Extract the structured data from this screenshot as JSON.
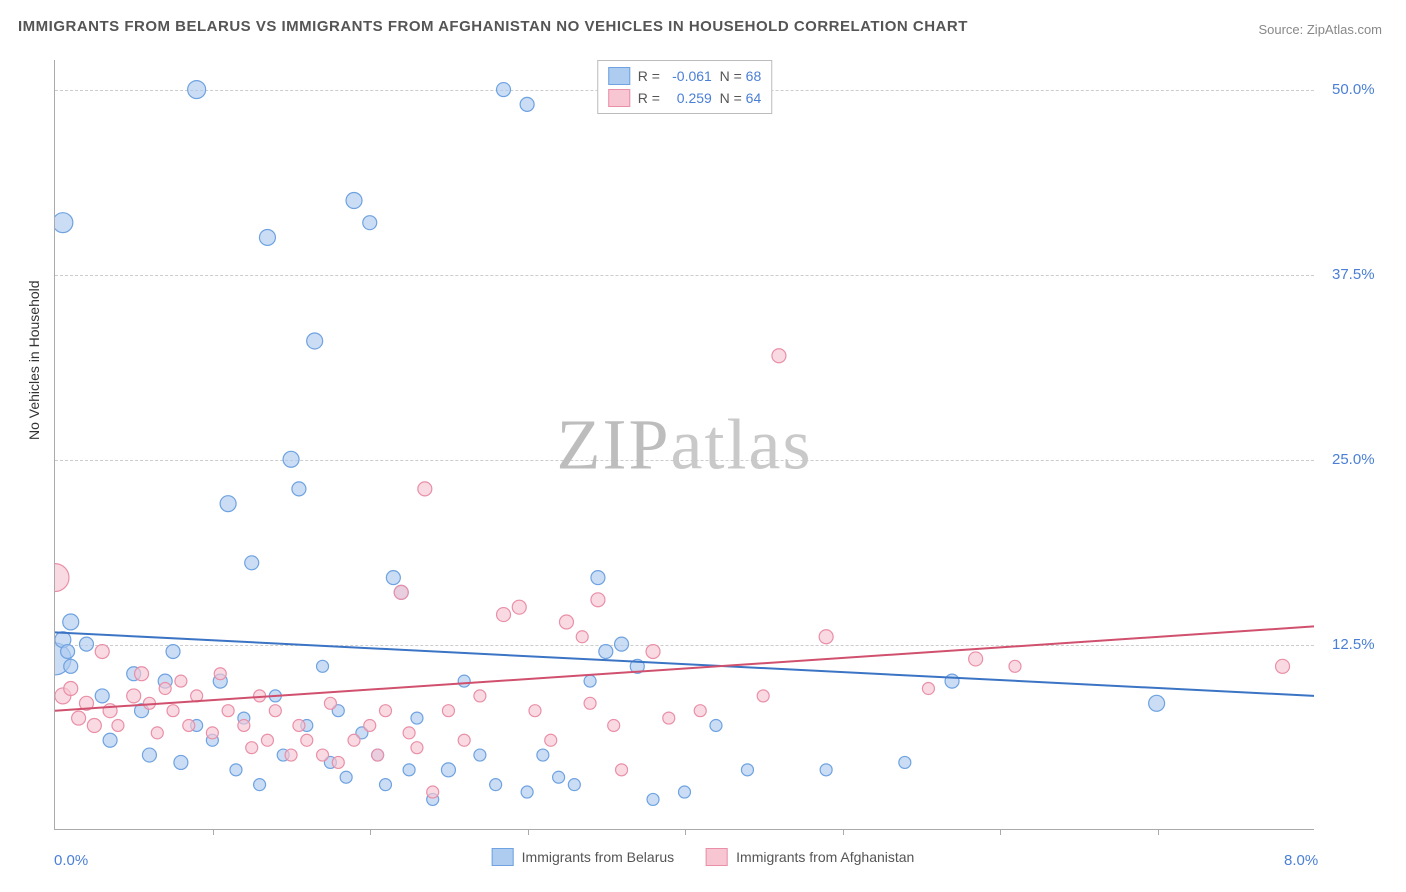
{
  "title": "IMMIGRANTS FROM BELARUS VS IMMIGRANTS FROM AFGHANISTAN NO VEHICLES IN HOUSEHOLD CORRELATION CHART",
  "title_fontsize": 15,
  "title_color": "#555555",
  "source_label": "Source: ZipAtlas.com",
  "watermark": "ZIPatlas",
  "yaxis_title": "No Vehicles in Household",
  "background_color": "#ffffff",
  "grid_color": "#cccccc",
  "axis_color": "#aaaaaa",
  "xlim": [
    0,
    8
  ],
  "ylim": [
    0,
    52
  ],
  "y_ticks": [
    12.5,
    25.0,
    37.5,
    50.0
  ],
  "x_min_label": "0.0%",
  "x_max_label": "8.0%",
  "x_tick_positions": [
    1.0,
    2.0,
    3.0,
    4.0,
    5.0,
    6.0,
    7.0
  ],
  "legend_top": [
    {
      "swatch_fill": "#aecbf0",
      "swatch_stroke": "#6ea2e0",
      "R": "-0.061",
      "N": "68"
    },
    {
      "swatch_fill": "#f7c6d2",
      "swatch_stroke": "#e98fa8",
      "R": "0.259",
      "N": "64"
    }
  ],
  "legend_bottom": [
    {
      "swatch_fill": "#aecbf0",
      "swatch_stroke": "#6ea2e0",
      "label": "Immigrants from Belarus"
    },
    {
      "swatch_fill": "#f7c6d2",
      "swatch_stroke": "#e98fa8",
      "label": "Immigrants from Afghanistan"
    }
  ],
  "series": [
    {
      "name": "belarus",
      "point_fill": "#aecbf0",
      "point_stroke": "#6ea2e0",
      "point_opacity": 0.65,
      "line_color": "#3b74c4",
      "line_width": 2,
      "line_y_at_xmin": 13.3,
      "line_y_at_xmax": 9.0,
      "points": [
        {
          "x": 0.05,
          "y": 41.0,
          "r": 10
        },
        {
          "x": 0.1,
          "y": 14.0,
          "r": 8
        },
        {
          "x": 0.0,
          "y": 11.5,
          "r": 16
        },
        {
          "x": 0.05,
          "y": 12.8,
          "r": 8
        },
        {
          "x": 0.08,
          "y": 12.0,
          "r": 7
        },
        {
          "x": 0.1,
          "y": 11.0,
          "r": 7
        },
        {
          "x": 0.2,
          "y": 12.5,
          "r": 7
        },
        {
          "x": 0.3,
          "y": 9.0,
          "r": 7
        },
        {
          "x": 0.35,
          "y": 6.0,
          "r": 7
        },
        {
          "x": 0.5,
          "y": 10.5,
          "r": 7
        },
        {
          "x": 0.55,
          "y": 8.0,
          "r": 7
        },
        {
          "x": 0.6,
          "y": 5.0,
          "r": 7
        },
        {
          "x": 0.7,
          "y": 10.0,
          "r": 7
        },
        {
          "x": 0.75,
          "y": 12.0,
          "r": 7
        },
        {
          "x": 0.8,
          "y": 4.5,
          "r": 7
        },
        {
          "x": 0.9,
          "y": 50.0,
          "r": 9
        },
        {
          "x": 0.9,
          "y": 7.0,
          "r": 6
        },
        {
          "x": 1.0,
          "y": 6.0,
          "r": 6
        },
        {
          "x": 1.05,
          "y": 10.0,
          "r": 7
        },
        {
          "x": 1.1,
          "y": 22.0,
          "r": 8
        },
        {
          "x": 1.15,
          "y": 4.0,
          "r": 6
        },
        {
          "x": 1.2,
          "y": 7.5,
          "r": 6
        },
        {
          "x": 1.25,
          "y": 18.0,
          "r": 7
        },
        {
          "x": 1.3,
          "y": 3.0,
          "r": 6
        },
        {
          "x": 1.35,
          "y": 40.0,
          "r": 8
        },
        {
          "x": 1.4,
          "y": 9.0,
          "r": 6
        },
        {
          "x": 1.45,
          "y": 5.0,
          "r": 6
        },
        {
          "x": 1.5,
          "y": 25.0,
          "r": 8
        },
        {
          "x": 1.55,
          "y": 23.0,
          "r": 7
        },
        {
          "x": 1.6,
          "y": 7.0,
          "r": 6
        },
        {
          "x": 1.65,
          "y": 33.0,
          "r": 8
        },
        {
          "x": 1.7,
          "y": 11.0,
          "r": 6
        },
        {
          "x": 1.75,
          "y": 4.5,
          "r": 6
        },
        {
          "x": 1.8,
          "y": 8.0,
          "r": 6
        },
        {
          "x": 1.85,
          "y": 3.5,
          "r": 6
        },
        {
          "x": 1.9,
          "y": 42.5,
          "r": 8
        },
        {
          "x": 1.95,
          "y": 6.5,
          "r": 6
        },
        {
          "x": 2.0,
          "y": 41.0,
          "r": 7
        },
        {
          "x": 2.05,
          "y": 5.0,
          "r": 6
        },
        {
          "x": 2.1,
          "y": 3.0,
          "r": 6
        },
        {
          "x": 2.15,
          "y": 17.0,
          "r": 7
        },
        {
          "x": 2.2,
          "y": 16.0,
          "r": 7
        },
        {
          "x": 2.25,
          "y": 4.0,
          "r": 6
        },
        {
          "x": 2.3,
          "y": 7.5,
          "r": 6
        },
        {
          "x": 2.4,
          "y": 2.0,
          "r": 6
        },
        {
          "x": 2.5,
          "y": 4.0,
          "r": 7
        },
        {
          "x": 2.6,
          "y": 10.0,
          "r": 6
        },
        {
          "x": 2.7,
          "y": 5.0,
          "r": 6
        },
        {
          "x": 2.8,
          "y": 3.0,
          "r": 6
        },
        {
          "x": 2.85,
          "y": 50.0,
          "r": 7
        },
        {
          "x": 3.0,
          "y": 2.5,
          "r": 6
        },
        {
          "x": 3.1,
          "y": 5.0,
          "r": 6
        },
        {
          "x": 3.2,
          "y": 3.5,
          "r": 6
        },
        {
          "x": 3.3,
          "y": 3.0,
          "r": 6
        },
        {
          "x": 3.4,
          "y": 10.0,
          "r": 6
        },
        {
          "x": 3.45,
          "y": 17.0,
          "r": 7
        },
        {
          "x": 3.5,
          "y": 12.0,
          "r": 7
        },
        {
          "x": 3.6,
          "y": 12.5,
          "r": 7
        },
        {
          "x": 3.7,
          "y": 11.0,
          "r": 7
        },
        {
          "x": 3.8,
          "y": 2.0,
          "r": 6
        },
        {
          "x": 4.0,
          "y": 2.5,
          "r": 6
        },
        {
          "x": 4.2,
          "y": 7.0,
          "r": 6
        },
        {
          "x": 4.4,
          "y": 4.0,
          "r": 6
        },
        {
          "x": 4.9,
          "y": 4.0,
          "r": 6
        },
        {
          "x": 5.4,
          "y": 4.5,
          "r": 6
        },
        {
          "x": 5.7,
          "y": 10.0,
          "r": 7
        },
        {
          "x": 7.0,
          "y": 8.5,
          "r": 8
        },
        {
          "x": 3.0,
          "y": 49.0,
          "r": 7
        }
      ]
    },
    {
      "name": "afghanistan",
      "point_fill": "#f7c6d2",
      "point_stroke": "#e98fa8",
      "point_opacity": 0.65,
      "line_color": "#d0506e",
      "line_width": 2,
      "line_y_at_xmin": 8.0,
      "line_y_at_xmax": 13.7,
      "points": [
        {
          "x": 0.0,
          "y": 17.0,
          "r": 14
        },
        {
          "x": 0.05,
          "y": 9.0,
          "r": 8
        },
        {
          "x": 0.1,
          "y": 9.5,
          "r": 7
        },
        {
          "x": 0.15,
          "y": 7.5,
          "r": 7
        },
        {
          "x": 0.2,
          "y": 8.5,
          "r": 7
        },
        {
          "x": 0.25,
          "y": 7.0,
          "r": 7
        },
        {
          "x": 0.3,
          "y": 12.0,
          "r": 7
        },
        {
          "x": 0.35,
          "y": 8.0,
          "r": 7
        },
        {
          "x": 0.4,
          "y": 7.0,
          "r": 6
        },
        {
          "x": 0.5,
          "y": 9.0,
          "r": 7
        },
        {
          "x": 0.55,
          "y": 10.5,
          "r": 7
        },
        {
          "x": 0.6,
          "y": 8.5,
          "r": 6
        },
        {
          "x": 0.65,
          "y": 6.5,
          "r": 6
        },
        {
          "x": 0.7,
          "y": 9.5,
          "r": 6
        },
        {
          "x": 0.75,
          "y": 8.0,
          "r": 6
        },
        {
          "x": 0.8,
          "y": 10.0,
          "r": 6
        },
        {
          "x": 0.85,
          "y": 7.0,
          "r": 6
        },
        {
          "x": 0.9,
          "y": 9.0,
          "r": 6
        },
        {
          "x": 1.0,
          "y": 6.5,
          "r": 6
        },
        {
          "x": 1.05,
          "y": 10.5,
          "r": 6
        },
        {
          "x": 1.1,
          "y": 8.0,
          "r": 6
        },
        {
          "x": 1.2,
          "y": 7.0,
          "r": 6
        },
        {
          "x": 1.25,
          "y": 5.5,
          "r": 6
        },
        {
          "x": 1.3,
          "y": 9.0,
          "r": 6
        },
        {
          "x": 1.35,
          "y": 6.0,
          "r": 6
        },
        {
          "x": 1.4,
          "y": 8.0,
          "r": 6
        },
        {
          "x": 1.5,
          "y": 5.0,
          "r": 6
        },
        {
          "x": 1.55,
          "y": 7.0,
          "r": 6
        },
        {
          "x": 1.6,
          "y": 6.0,
          "r": 6
        },
        {
          "x": 1.7,
          "y": 5.0,
          "r": 6
        },
        {
          "x": 1.75,
          "y": 8.5,
          "r": 6
        },
        {
          "x": 1.8,
          "y": 4.5,
          "r": 6
        },
        {
          "x": 1.9,
          "y": 6.0,
          "r": 6
        },
        {
          "x": 2.0,
          "y": 7.0,
          "r": 6
        },
        {
          "x": 2.05,
          "y": 5.0,
          "r": 6
        },
        {
          "x": 2.1,
          "y": 8.0,
          "r": 6
        },
        {
          "x": 2.2,
          "y": 16.0,
          "r": 7
        },
        {
          "x": 2.25,
          "y": 6.5,
          "r": 6
        },
        {
          "x": 2.3,
          "y": 5.5,
          "r": 6
        },
        {
          "x": 2.35,
          "y": 23.0,
          "r": 7
        },
        {
          "x": 2.4,
          "y": 2.5,
          "r": 6
        },
        {
          "x": 2.5,
          "y": 8.0,
          "r": 6
        },
        {
          "x": 2.6,
          "y": 6.0,
          "r": 6
        },
        {
          "x": 2.7,
          "y": 9.0,
          "r": 6
        },
        {
          "x": 2.85,
          "y": 14.5,
          "r": 7
        },
        {
          "x": 2.95,
          "y": 15.0,
          "r": 7
        },
        {
          "x": 3.05,
          "y": 8.0,
          "r": 6
        },
        {
          "x": 3.15,
          "y": 6.0,
          "r": 6
        },
        {
          "x": 3.25,
          "y": 14.0,
          "r": 7
        },
        {
          "x": 3.35,
          "y": 13.0,
          "r": 6
        },
        {
          "x": 3.4,
          "y": 8.5,
          "r": 6
        },
        {
          "x": 3.45,
          "y": 15.5,
          "r": 7
        },
        {
          "x": 3.55,
          "y": 7.0,
          "r": 6
        },
        {
          "x": 3.6,
          "y": 4.0,
          "r": 6
        },
        {
          "x": 3.8,
          "y": 12.0,
          "r": 7
        },
        {
          "x": 3.9,
          "y": 7.5,
          "r": 6
        },
        {
          "x": 4.1,
          "y": 8.0,
          "r": 6
        },
        {
          "x": 4.5,
          "y": 9.0,
          "r": 6
        },
        {
          "x": 4.6,
          "y": 32.0,
          "r": 7
        },
        {
          "x": 4.9,
          "y": 13.0,
          "r": 7
        },
        {
          "x": 5.55,
          "y": 9.5,
          "r": 6
        },
        {
          "x": 5.85,
          "y": 11.5,
          "r": 7
        },
        {
          "x": 6.1,
          "y": 11.0,
          "r": 6
        },
        {
          "x": 7.8,
          "y": 11.0,
          "r": 7
        }
      ]
    }
  ]
}
